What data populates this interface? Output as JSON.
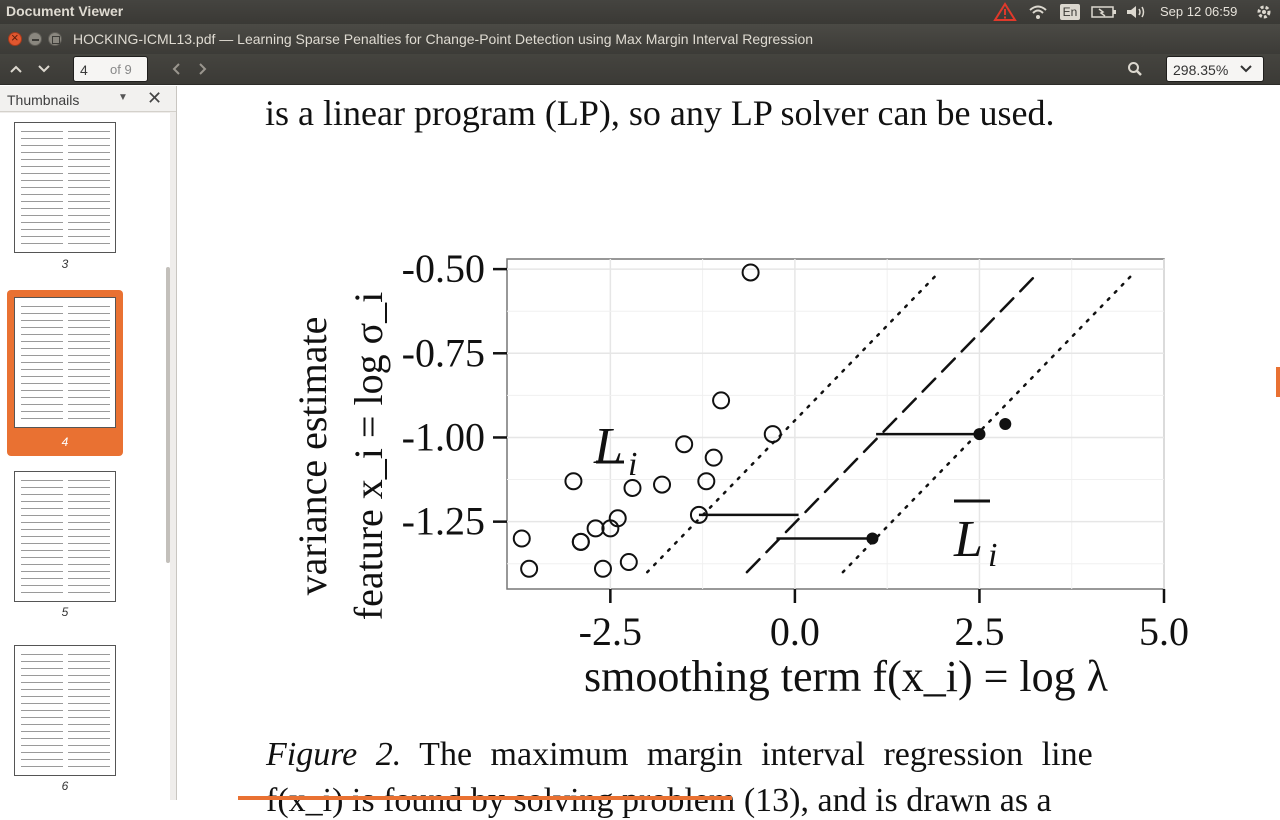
{
  "topbar": {
    "app_name": "Document Viewer",
    "keyboard": "En",
    "clock": "Sep 12 06:59",
    "icons": [
      "warning-icon",
      "wifi-icon",
      "keyboard-icon",
      "battery-icon",
      "volume-icon",
      "settings-gear-icon"
    ]
  },
  "window": {
    "title": "HOCKING-ICML13.pdf — Learning Sparse Penalties for Change-Point Detection using Max Margin Interval Regression"
  },
  "toolbar": {
    "page_current": "4",
    "page_total": "of 9",
    "zoom": "298.35%"
  },
  "sidebar": {
    "title": "Thumbnails",
    "thumbnails": [
      {
        "page": "3",
        "active": false
      },
      {
        "page": "4",
        "active": true
      },
      {
        "page": "5",
        "active": false
      },
      {
        "page": "6",
        "active": false
      }
    ]
  },
  "document": {
    "top_line": "is a linear program (LP), so any LP solver can be used.",
    "caption_label": "Figure 2.",
    "caption_text": "The maximum margin interval regression line",
    "caption_next": "f(x_i) is found by solving problem (13), and is drawn as a"
  },
  "chart_data": {
    "type": "scatter",
    "xlabel": "smoothing term f(x_i) = log λ",
    "ylabel_line1": "variance estimate",
    "ylabel_line2": "feature x_i = log σ_i",
    "x_ticks": [
      "-2.5",
      "0.0",
      "2.5",
      "5.0"
    ],
    "y_ticks": [
      "-0.50",
      "-0.75",
      "-1.00",
      "-1.25"
    ],
    "xlim": [
      -3.9,
      5.0
    ],
    "ylim": [
      -1.45,
      -0.47
    ],
    "labels": {
      "lower": "L",
      "upper": "L",
      "subscript": "i"
    },
    "open_points": [
      [
        -0.6,
        -0.51
      ],
      [
        -1.0,
        -0.89
      ],
      [
        -0.3,
        -0.99
      ],
      [
        -1.5,
        -1.02
      ],
      [
        -1.1,
        -1.06
      ],
      [
        -3.0,
        -1.13
      ],
      [
        -1.8,
        -1.14
      ],
      [
        -2.2,
        -1.15
      ],
      [
        -1.2,
        -1.13
      ],
      [
        -1.3,
        -1.23
      ],
      [
        -2.4,
        -1.24
      ],
      [
        -2.7,
        -1.27
      ],
      [
        -2.5,
        -1.27
      ],
      [
        -3.7,
        -1.3
      ],
      [
        -2.9,
        -1.31
      ],
      [
        -2.9,
        -1.31
      ],
      [
        -2.25,
        -1.37
      ],
      [
        -3.6,
        -1.39
      ],
      [
        -2.6,
        -1.39
      ]
    ],
    "closed_points": [
      [
        2.5,
        -0.99
      ],
      [
        2.85,
        -0.96
      ],
      [
        1.05,
        -1.3
      ]
    ],
    "intervals": [
      {
        "x1": 1.1,
        "x2": 2.5,
        "y": -0.99
      },
      {
        "x1": -1.3,
        "x2": 0.05,
        "y": -1.23
      },
      {
        "x1": -0.25,
        "x2": 1.05,
        "y": -1.3
      }
    ],
    "lines": [
      {
        "style": "dashed",
        "points": [
          [
            -0.65,
            -1.4
          ],
          [
            3.3,
            -0.51
          ]
        ]
      },
      {
        "style": "dotted",
        "points": [
          [
            -2.0,
            -1.4
          ],
          [
            1.95,
            -0.51
          ]
        ]
      },
      {
        "style": "dotted",
        "points": [
          [
            0.65,
            -1.4
          ],
          [
            4.6,
            -0.51
          ]
        ]
      }
    ],
    "grid": true
  }
}
